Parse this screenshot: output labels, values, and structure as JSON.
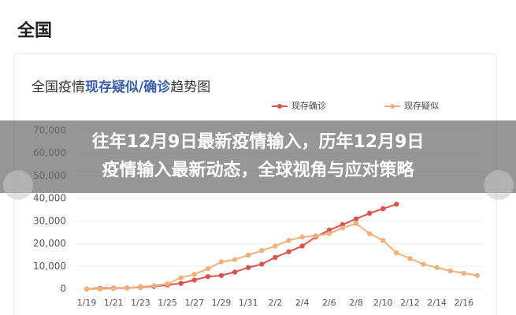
{
  "header": "全国",
  "banner": [
    "往年12月9日最新疫情输入，历年12月9日",
    "疫情输入最新动态，全球视角与应对策略"
  ],
  "chart_data": {
    "type": "line",
    "title": [
      "全国疫情",
      "现存疑似/确诊",
      "趋势图"
    ],
    "categories": [
      "1/19",
      null,
      "1/21",
      null,
      "1/23",
      null,
      "1/25",
      null,
      "1/27",
      null,
      "1/29",
      null,
      "1/31",
      null,
      "2/2",
      null,
      "2/4",
      null,
      "2/6",
      null,
      "2/8",
      null,
      "2/10",
      null,
      "2/12",
      null,
      "2/14",
      null,
      "2/16",
      null
    ],
    "series": [
      {
        "name": "现存确诊",
        "color": "#d9534f",
        "values": [
          0,
          300,
          400,
          500,
          800,
          1200,
          1800,
          2500,
          4000,
          5500,
          6000,
          7500,
          9500,
          11000,
          14000,
          16500,
          19000,
          23000,
          26000,
          28500,
          31000,
          33500,
          35500,
          37500,
          null,
          null,
          null,
          null,
          null,
          null
        ]
      },
      {
        "name": "现存疑似",
        "color": "#f4b07a",
        "values": [
          0,
          0,
          200,
          400,
          1000,
          1500,
          2300,
          5000,
          6500,
          9000,
          12000,
          13000,
          15000,
          17000,
          19000,
          21500,
          23000,
          23500,
          24500,
          27000,
          29000,
          24500,
          21500,
          16000,
          13500,
          11000,
          9500,
          8000,
          7000,
          6000
        ]
      }
    ],
    "ylim": [
      0,
      70000
    ],
    "yticks": [
      0,
      {
        "value": 10000,
        "label": "10,000"
      },
      {
        "value": 20000,
        "label": "20,000"
      },
      {
        "value": 30000,
        "label": "30,000"
      },
      {
        "value": 40000,
        "label": "40,000"
      },
      {
        "value": 50000,
        "label": "50,000"
      },
      {
        "value": 60000,
        "label": "60,000"
      },
      {
        "value": 70000,
        "label": "70,000"
      }
    ],
    "grid": true
  }
}
